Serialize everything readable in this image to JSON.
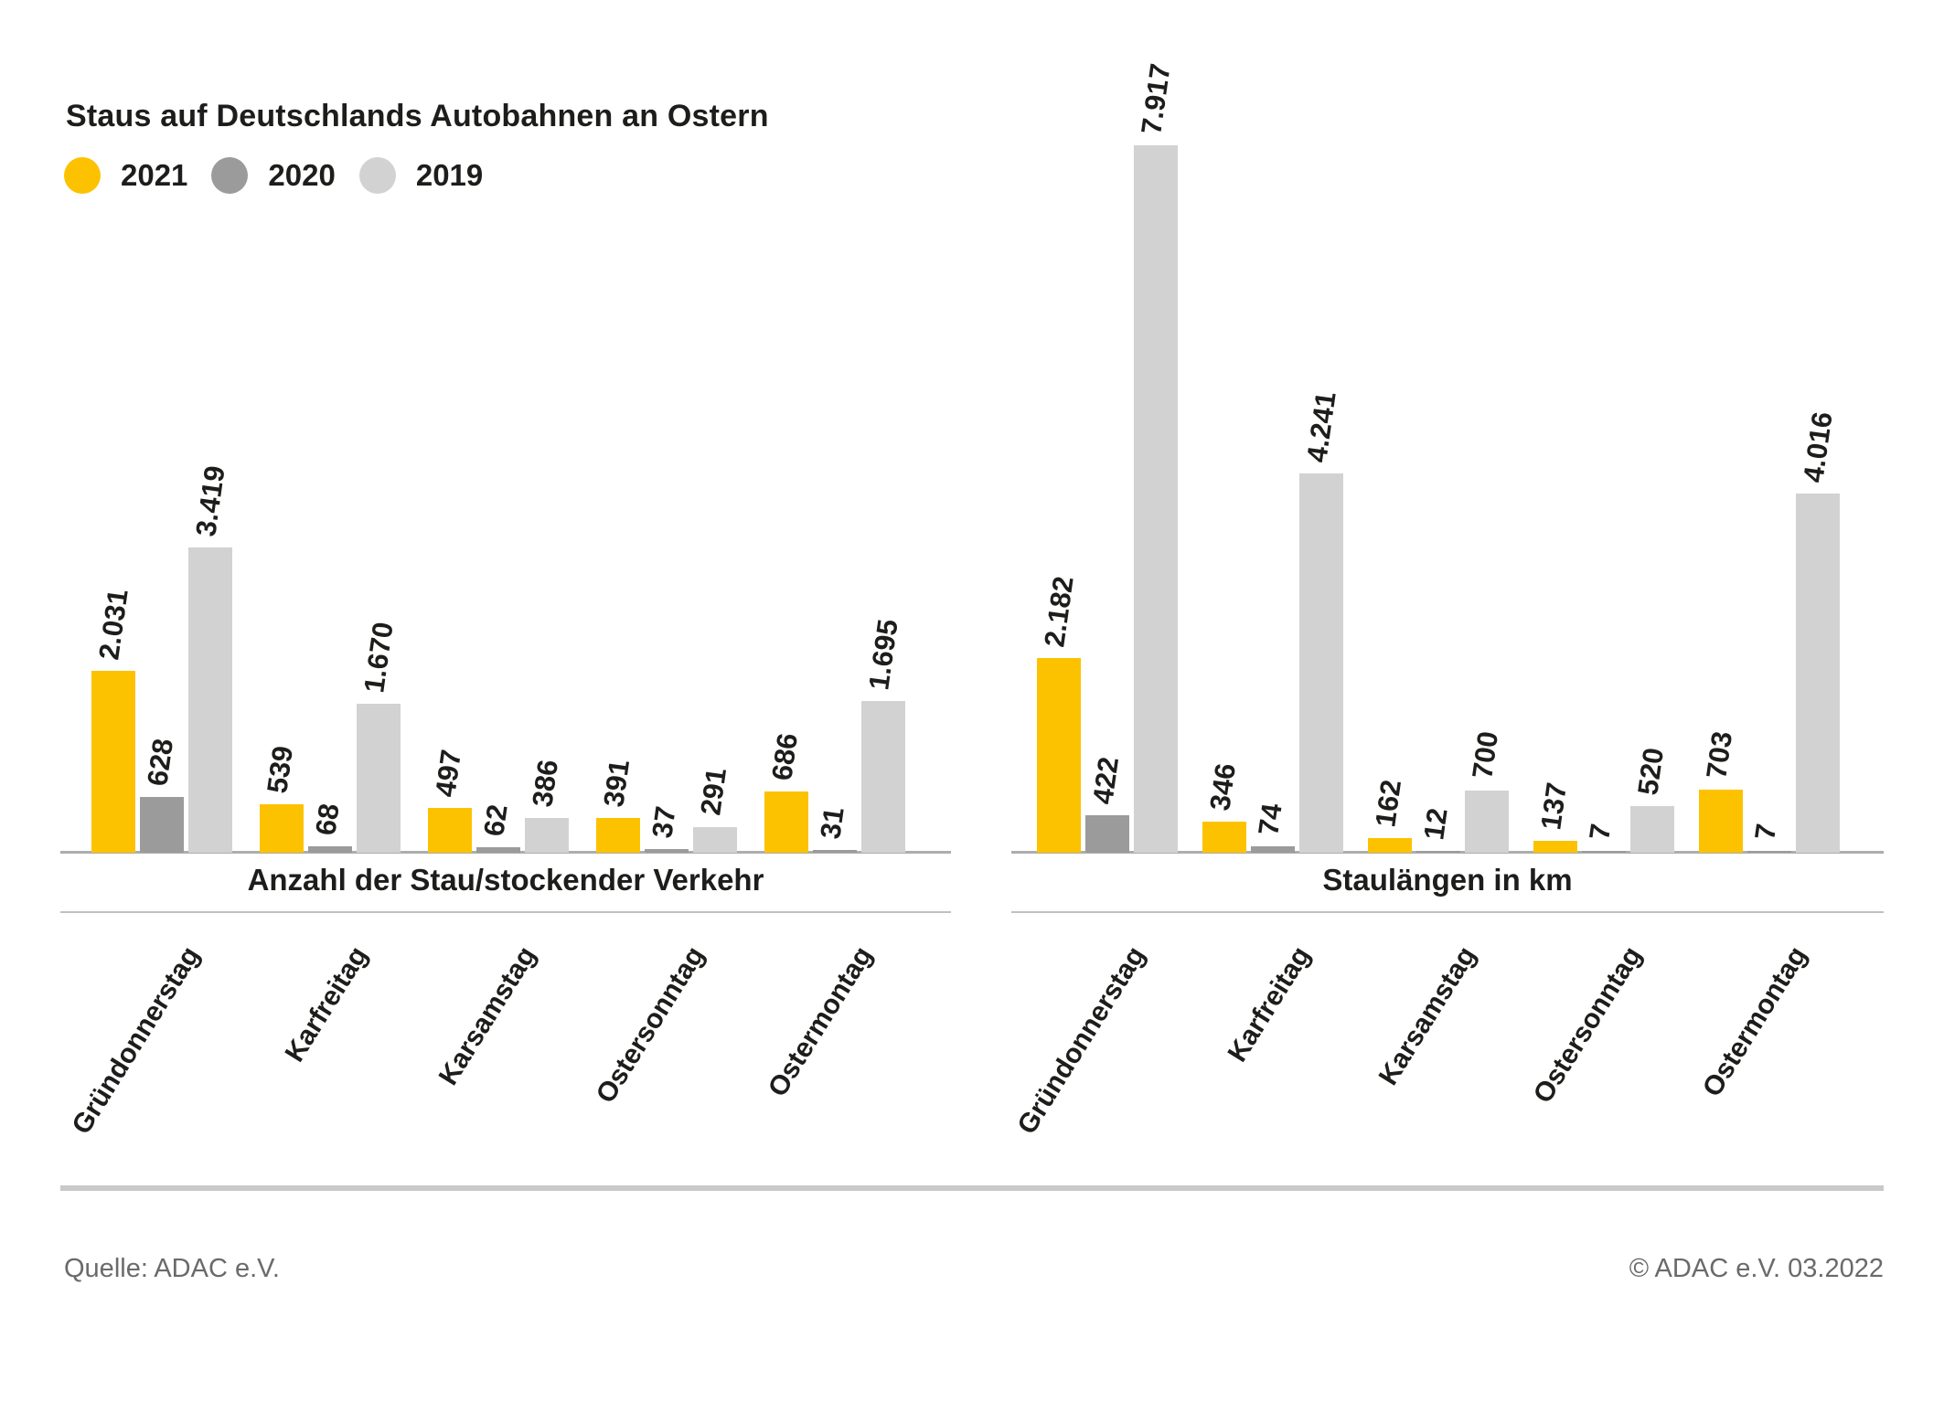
{
  "title": "Staus auf Deutschlands Autobahnen an Ostern",
  "legend": [
    {
      "label": "2021",
      "color": "#FCC200"
    },
    {
      "label": "2020",
      "color": "#9B9B9B"
    },
    {
      "label": "2019",
      "color": "#D2D2D2"
    }
  ],
  "footer": {
    "source": "Quelle: ADAC e.V.",
    "copyright": "© ADAC e.V. 03.2022"
  },
  "chart_data": [
    {
      "type": "bar",
      "title": "Anzahl der Stau/stockender Verkehr",
      "categories": [
        "Gründonnerstag",
        "Karfreitag",
        "Karsamstag",
        "Ostersonntag",
        "Ostermontag"
      ],
      "series": [
        {
          "name": "2021",
          "color": "#FCC200",
          "values": [
            2031,
            539,
            497,
            391,
            686
          ]
        },
        {
          "name": "2020",
          "color": "#9B9B9B",
          "values": [
            628,
            68,
            62,
            37,
            31
          ]
        },
        {
          "name": "2019",
          "color": "#D2D2D2",
          "values": [
            3419,
            1670,
            386,
            291,
            1695
          ]
        }
      ],
      "value_labels": "rotated vertical, German thousands separator (e.g. 2.031)",
      "ylim": [
        0,
        8000
      ],
      "grid": false,
      "legend_position": "top-left shared"
    },
    {
      "type": "bar",
      "title": "Staulängen in km",
      "categories": [
        "Gründonnerstag",
        "Karfreitag",
        "Karsamstag",
        "Ostersonntag",
        "Ostermontag"
      ],
      "series": [
        {
          "name": "2021",
          "color": "#FCC200",
          "values": [
            2182,
            346,
            162,
            137,
            703
          ]
        },
        {
          "name": "2020",
          "color": "#9B9B9B",
          "values": [
            422,
            74,
            12,
            7,
            7
          ]
        },
        {
          "name": "2019",
          "color": "#D2D2D2",
          "values": [
            7917,
            4241,
            700,
            520,
            4016
          ]
        }
      ],
      "value_labels": "rotated vertical, German thousands separator (e.g. 7.917)",
      "ylim": [
        0,
        8000
      ],
      "grid": false,
      "legend_position": "top-left shared"
    }
  ]
}
